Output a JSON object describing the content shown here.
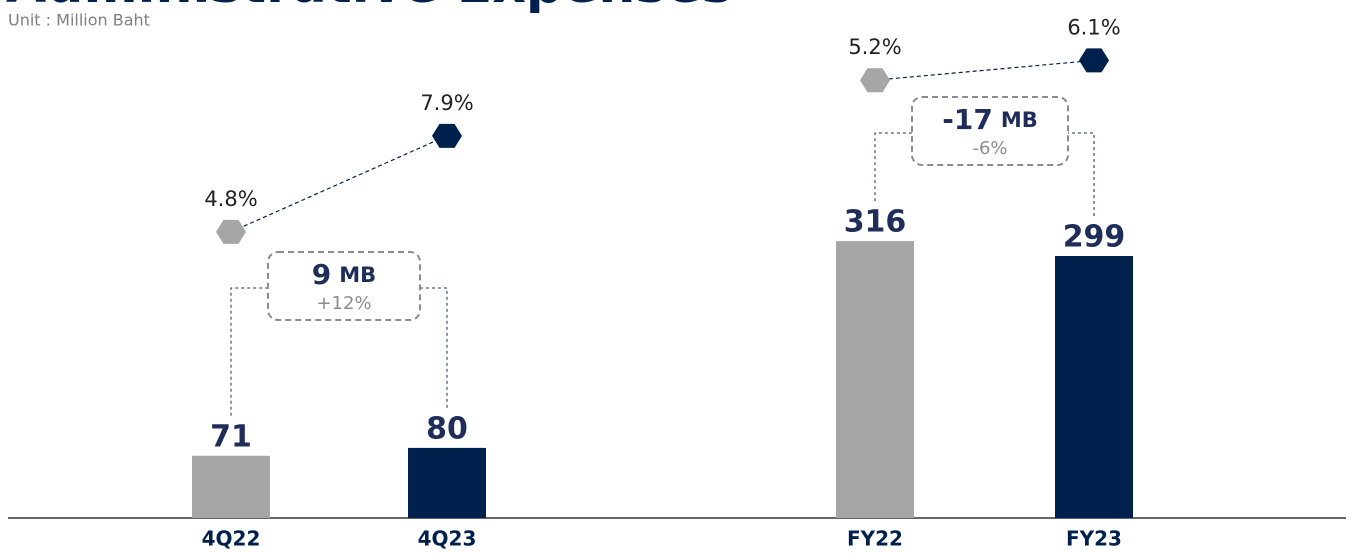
{
  "chart_data": [
    {
      "type": "bar",
      "title": "Administrative Expenses",
      "subtitle": "Unit : Million Baht",
      "categories": [
        "4Q22",
        "4Q23"
      ],
      "ylim": [
        0,
        590
      ],
      "y2lim": [
        -4.43,
        12.25
      ],
      "series": [
        {
          "type": "bar",
          "values": [
            71,
            80
          ],
          "colors": [
            "#a6a6a6",
            "#00204e"
          ]
        },
        {
          "type": "line",
          "axis": "y2",
          "values": [
            4.8,
            7.9
          ],
          "value_labels": [
            "4.8%",
            "7.9%"
          ],
          "colors": [
            "#a6a6a6",
            "#00204e"
          ]
        }
      ],
      "annotation": {
        "value": 9,
        "unit": "MB",
        "pct": "+12%"
      }
    },
    {
      "type": "bar",
      "categories": [
        "FY22",
        "FY23"
      ],
      "ylim": [
        0,
        590
      ],
      "y2lim": [
        -14.7,
        8.8
      ],
      "series": [
        {
          "type": "bar",
          "values": [
            316,
            299
          ],
          "colors": [
            "#a6a6a6",
            "#00204e"
          ]
        },
        {
          "type": "line",
          "axis": "y2",
          "values": [
            5.2,
            6.1
          ],
          "value_labels": [
            "5.2%",
            "6.1%"
          ],
          "colors": [
            "#a6a6a6",
            "#00204e"
          ]
        }
      ],
      "annotation": {
        "value": -17,
        "unit": "MB",
        "pct": "-6%"
      }
    }
  ]
}
